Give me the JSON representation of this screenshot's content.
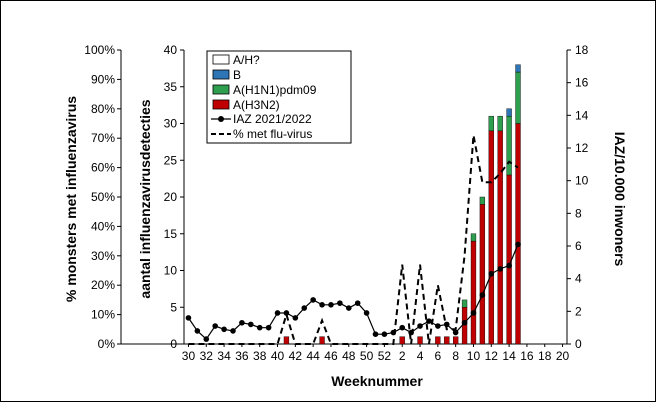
{
  "chart_data": {
    "type": "bar",
    "x_axis": {
      "label": "Weeknummer",
      "weeks": [
        30,
        31,
        32,
        33,
        34,
        35,
        36,
        37,
        38,
        39,
        40,
        41,
        42,
        43,
        44,
        45,
        46,
        47,
        48,
        49,
        50,
        51,
        52,
        1,
        2,
        3,
        4,
        5,
        6,
        7,
        8,
        9,
        10,
        11,
        12,
        13,
        14,
        15,
        16,
        17,
        18,
        19,
        20
      ],
      "tick_labels": [
        "30",
        "32",
        "34",
        "36",
        "38",
        "40",
        "42",
        "44",
        "46",
        "48",
        "50",
        "52",
        "2",
        "4",
        "6",
        "8",
        "10",
        "12",
        "14",
        "16",
        "18",
        "20"
      ]
    },
    "y_axes": {
      "left_outer": {
        "label": "% monsters met influenzavirus",
        "ticks": [
          "0%",
          "10%",
          "20%",
          "30%",
          "40%",
          "50%",
          "60%",
          "70%",
          "80%",
          "90%",
          "100%"
        ],
        "ylim": [
          0,
          100
        ]
      },
      "left_inner": {
        "label": "aantal influenzavirusdetecties",
        "ticks": [
          "0",
          "5",
          "10",
          "15",
          "20",
          "25",
          "30",
          "35",
          "40"
        ],
        "ylim": [
          0,
          40
        ]
      },
      "right": {
        "label": "IAZ/10.000 inwoners",
        "ticks": [
          "0",
          "2",
          "4",
          "6",
          "8",
          "10",
          "12",
          "14",
          "16",
          "18"
        ],
        "ylim": [
          0,
          18
        ]
      }
    },
    "legend": {
      "placement": "top-left",
      "entries": [
        "A/H?",
        "B",
        "A(H1N1)pdm09",
        "A(H3N2)",
        "IAZ 2021/2022",
        "% met flu-virus"
      ]
    },
    "colors": {
      "A/H?": "#ffffff",
      "B": "#2e75b6",
      "A(H1N1)pdm09": "#2e9e4f",
      "A(H3N2)": "#c00000"
    },
    "series": [
      {
        "name": "A(H3N2)",
        "values": [
          0,
          0,
          0,
          0,
          0,
          0,
          0,
          0,
          0,
          0,
          0,
          1,
          0,
          0,
          0,
          1,
          0,
          0,
          0,
          0,
          0,
          0,
          0,
          0,
          1,
          0,
          1,
          0,
          1,
          1,
          1,
          5,
          14,
          19,
          29,
          29,
          23,
          30,
          0,
          0,
          0,
          0,
          0
        ]
      },
      {
        "name": "A(H1N1)pdm09",
        "values": [
          0,
          0,
          0,
          0,
          0,
          0,
          0,
          0,
          0,
          0,
          0,
          0,
          0,
          0,
          0,
          0,
          0,
          0,
          0,
          0,
          0,
          0,
          0,
          0,
          0,
          0,
          0,
          0,
          0,
          0,
          0,
          1,
          1,
          1,
          2,
          2,
          8,
          7,
          0,
          0,
          0,
          0,
          0
        ]
      },
      {
        "name": "B",
        "values": [
          0,
          0,
          0,
          0,
          0,
          0,
          0,
          0,
          0,
          0,
          0,
          0,
          0,
          0,
          0,
          0,
          0,
          0,
          0,
          0,
          0,
          0,
          0,
          0,
          0,
          0,
          0,
          0,
          0,
          0,
          0,
          0,
          0,
          0,
          0,
          0,
          1,
          1,
          0,
          0,
          0,
          0,
          0
        ]
      },
      {
        "name": "A/H?",
        "values": [
          0,
          0,
          0,
          0,
          0,
          0,
          0,
          0,
          0,
          0,
          0,
          0,
          0,
          0,
          0,
          0,
          0,
          0,
          0,
          0,
          0,
          0,
          0,
          0,
          0,
          0,
          0,
          0,
          0,
          0,
          0,
          0,
          0,
          0,
          0,
          0,
          0,
          0,
          0,
          0,
          0,
          0,
          0
        ]
      }
    ],
    "iaz": {
      "name": "IAZ 2021/2022",
      "weeks": [
        30,
        31,
        32,
        33,
        34,
        35,
        36,
        37,
        38,
        39,
        40,
        41,
        42,
        43,
        44,
        45,
        46,
        47,
        48,
        49,
        50,
        51,
        52,
        1,
        2,
        3,
        4,
        5,
        6,
        7,
        8,
        9,
        10,
        11,
        12,
        13,
        14,
        15
      ],
      "values": [
        1.6,
        0.8,
        0.3,
        1.1,
        0.9,
        0.8,
        1.3,
        1.2,
        1.0,
        1.0,
        1.9,
        1.9,
        1.6,
        2.2,
        2.7,
        2.4,
        2.4,
        2.5,
        2.2,
        2.5,
        1.9,
        0.6,
        0.6,
        0.7,
        1.0,
        0.7,
        1.1,
        1.4,
        1.1,
        1.2,
        0.7,
        1.3,
        1.9,
        3.0,
        4.3,
        4.6,
        4.8,
        6.1
      ]
    },
    "pct_flu": {
      "name": "% met flu-virus",
      "weeks": [
        30,
        31,
        32,
        33,
        34,
        35,
        36,
        37,
        38,
        39,
        40,
        41,
        42,
        43,
        44,
        45,
        46,
        47,
        48,
        49,
        50,
        51,
        52,
        1,
        2,
        3,
        4,
        5,
        6,
        7,
        8,
        9,
        10,
        11,
        12,
        13,
        14,
        15
      ],
      "values": [
        0,
        0,
        0,
        0,
        0,
        0,
        0,
        0,
        0,
        0,
        0,
        10,
        0,
        0,
        0,
        8,
        0,
        0,
        0,
        0,
        0,
        0,
        0,
        0,
        27,
        0,
        27,
        0,
        20,
        5,
        5,
        30,
        71,
        55,
        55,
        58,
        62,
        60
      ]
    }
  }
}
